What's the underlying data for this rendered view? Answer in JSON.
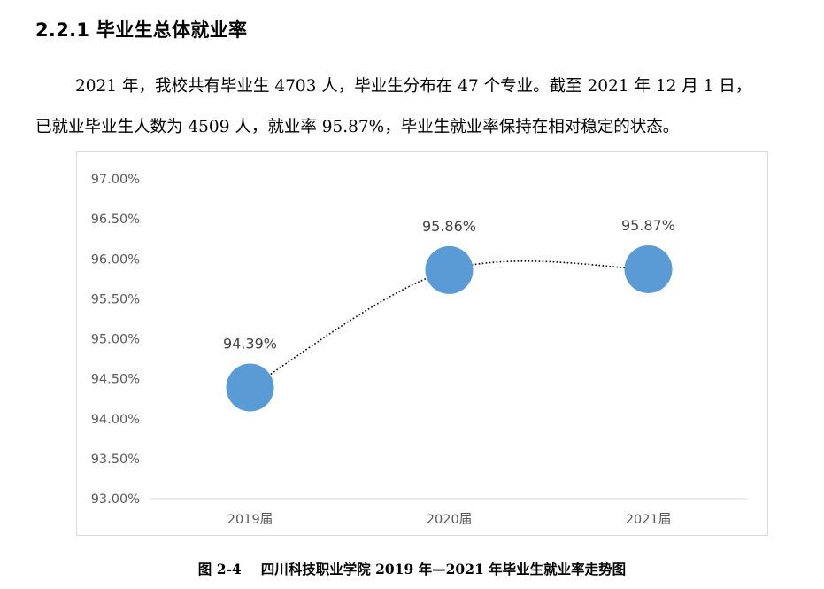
{
  "section": {
    "heading": "2.2.1 毕业生总体就业率"
  },
  "paragraph": {
    "line1": "2021 年，我校共有毕业生 4703 人，毕业生分布在 47 个专业。截至 2021 年 12 月 1 日，",
    "line2": "已就业毕业生人数为 4509 人，就业率 95.87%，毕业生就业率保持在相对稳定的状态。"
  },
  "caption": {
    "number": "图 2-4",
    "text": "四川科技职业学院 2019 年—2021 年毕业生就业率走势图"
  },
  "chart_data": {
    "type": "line",
    "categories": [
      "2019届",
      "2020届",
      "2021届"
    ],
    "values": [
      94.39,
      95.86,
      95.87
    ],
    "data_labels": [
      "94.39%",
      "95.86%",
      "95.87%"
    ],
    "yticks": [
      "97.00%",
      "96.50%",
      "96.00%",
      "95.50%",
      "95.00%",
      "94.50%",
      "94.00%",
      "93.50%",
      "93.00%"
    ],
    "ylim": [
      93,
      97
    ],
    "marker_color": "#5B9BD5",
    "line_style": "dotted smooth",
    "grid": false,
    "legend": "none"
  }
}
